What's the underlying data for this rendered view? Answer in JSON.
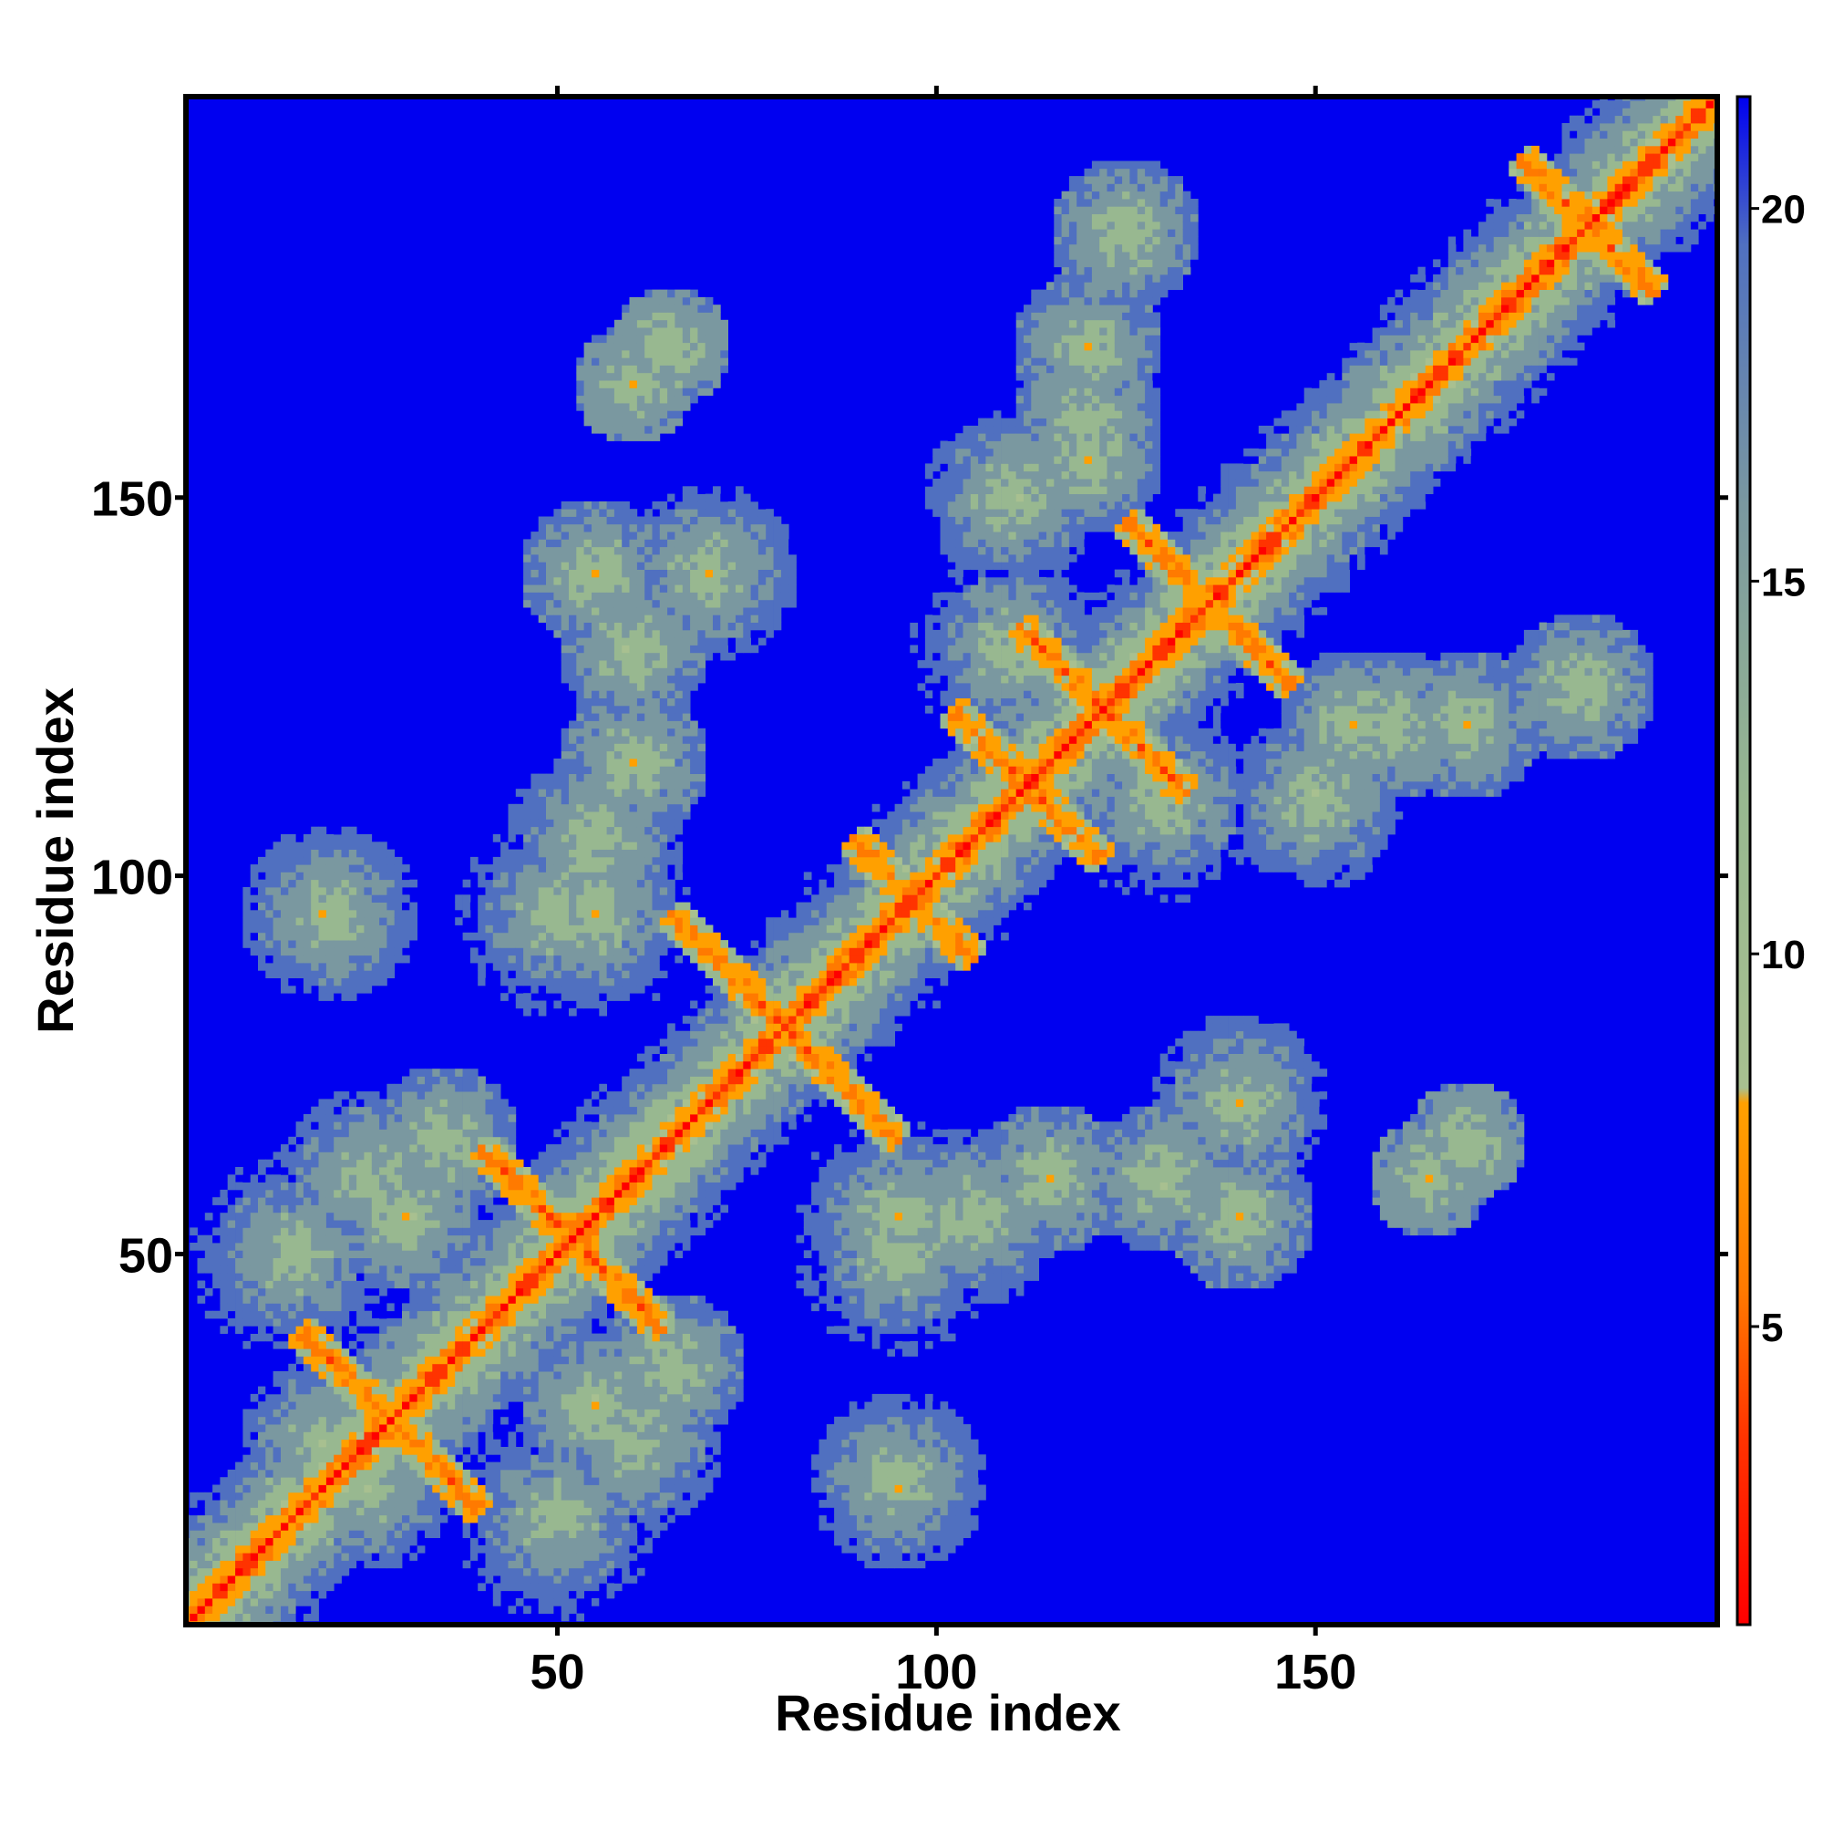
{
  "chart_data": {
    "type": "heatmap",
    "title": "",
    "xlabel": "Residue index",
    "ylabel": "Residue index",
    "xlim": [
      1,
      203
    ],
    "ylim": [
      1,
      203
    ],
    "x_ticks": [
      {
        "value": 50,
        "label": "50"
      },
      {
        "value": 100,
        "label": "100"
      },
      {
        "value": 150,
        "label": "150"
      }
    ],
    "y_ticks": [
      {
        "value": 50,
        "label": "50"
      },
      {
        "value": 100,
        "label": "100"
      },
      {
        "value": 150,
        "label": "150"
      }
    ],
    "colorbar": {
      "range": [
        1,
        21.5
      ],
      "ticks": [
        {
          "value": 5,
          "label": "5"
        },
        {
          "value": 10,
          "label": "10"
        },
        {
          "value": 15,
          "label": "15"
        },
        {
          "value": 20,
          "label": "20"
        }
      ],
      "stops": [
        {
          "value": 1,
          "color": "#ff0000"
        },
        {
          "value": 3.5,
          "color": "#ff3300"
        },
        {
          "value": 5.5,
          "color": "#ff7a00"
        },
        {
          "value": 8,
          "color": "#ffa000"
        },
        {
          "value": 8.2,
          "color": "#a8c090"
        },
        {
          "value": 12,
          "color": "#98b890"
        },
        {
          "value": 16,
          "color": "#7a98a0"
        },
        {
          "value": 19.5,
          "color": "#5070c0"
        },
        {
          "value": 21.5,
          "color": "#0000f0"
        }
      ]
    },
    "colors": {
      "background_blue": "#0000f0",
      "near_contact_red": "#ff0000",
      "mid_orange": "#ff8c00",
      "far_green": "#9bbb8c"
    },
    "features": {
      "n_residues": 203,
      "max_distance": 21.5,
      "helices": [
        [
          4,
          14
        ],
        [
          18,
          34
        ],
        [
          47,
          60
        ],
        [
          75,
          88
        ],
        [
          92,
          102
        ],
        [
          106,
          118
        ],
        [
          128,
          140
        ],
        [
          150,
          160
        ],
        [
          178,
          192
        ]
      ],
      "antiparallel_contacts": [
        {
          "center": [
            28,
            28
          ],
          "length": 24
        },
        {
          "center": [
            52,
            52
          ],
          "length": 24
        },
        {
          "center": [
            80,
            80
          ],
          "length": 30
        },
        {
          "center": [
            97,
            97
          ],
          "length": 16
        },
        {
          "center": [
            112,
            112
          ],
          "length": 20
        },
        {
          "center": [
            122,
            122
          ],
          "length": 22
        },
        {
          "center": [
            136,
            136
          ],
          "length": 22
        },
        {
          "center": [
            186,
            186
          ],
          "length": 18
        }
      ],
      "contact_blobs": [
        [
          15,
          50,
          14
        ],
        [
          25,
          20,
          12
        ],
        [
          30,
          55,
          10
        ],
        [
          60,
          25,
          12
        ],
        [
          65,
          35,
          10
        ],
        [
          50,
          95,
          14
        ],
        [
          60,
          115,
          10
        ],
        [
          70,
          140,
          12
        ],
        [
          95,
          20,
          12
        ],
        [
          95,
          55,
          14
        ],
        [
          105,
          55,
          12
        ],
        [
          130,
          60,
          10
        ],
        [
          130,
          110,
          14
        ],
        [
          140,
          55,
          10
        ],
        [
          120,
          160,
          10
        ],
        [
          165,
          60,
          8
        ],
        [
          170,
          120,
          10
        ],
        [
          185,
          125,
          10
        ],
        [
          150,
          110,
          12
        ],
        [
          155,
          120,
          10
        ],
        [
          170,
          65,
          8
        ]
      ]
    }
  }
}
